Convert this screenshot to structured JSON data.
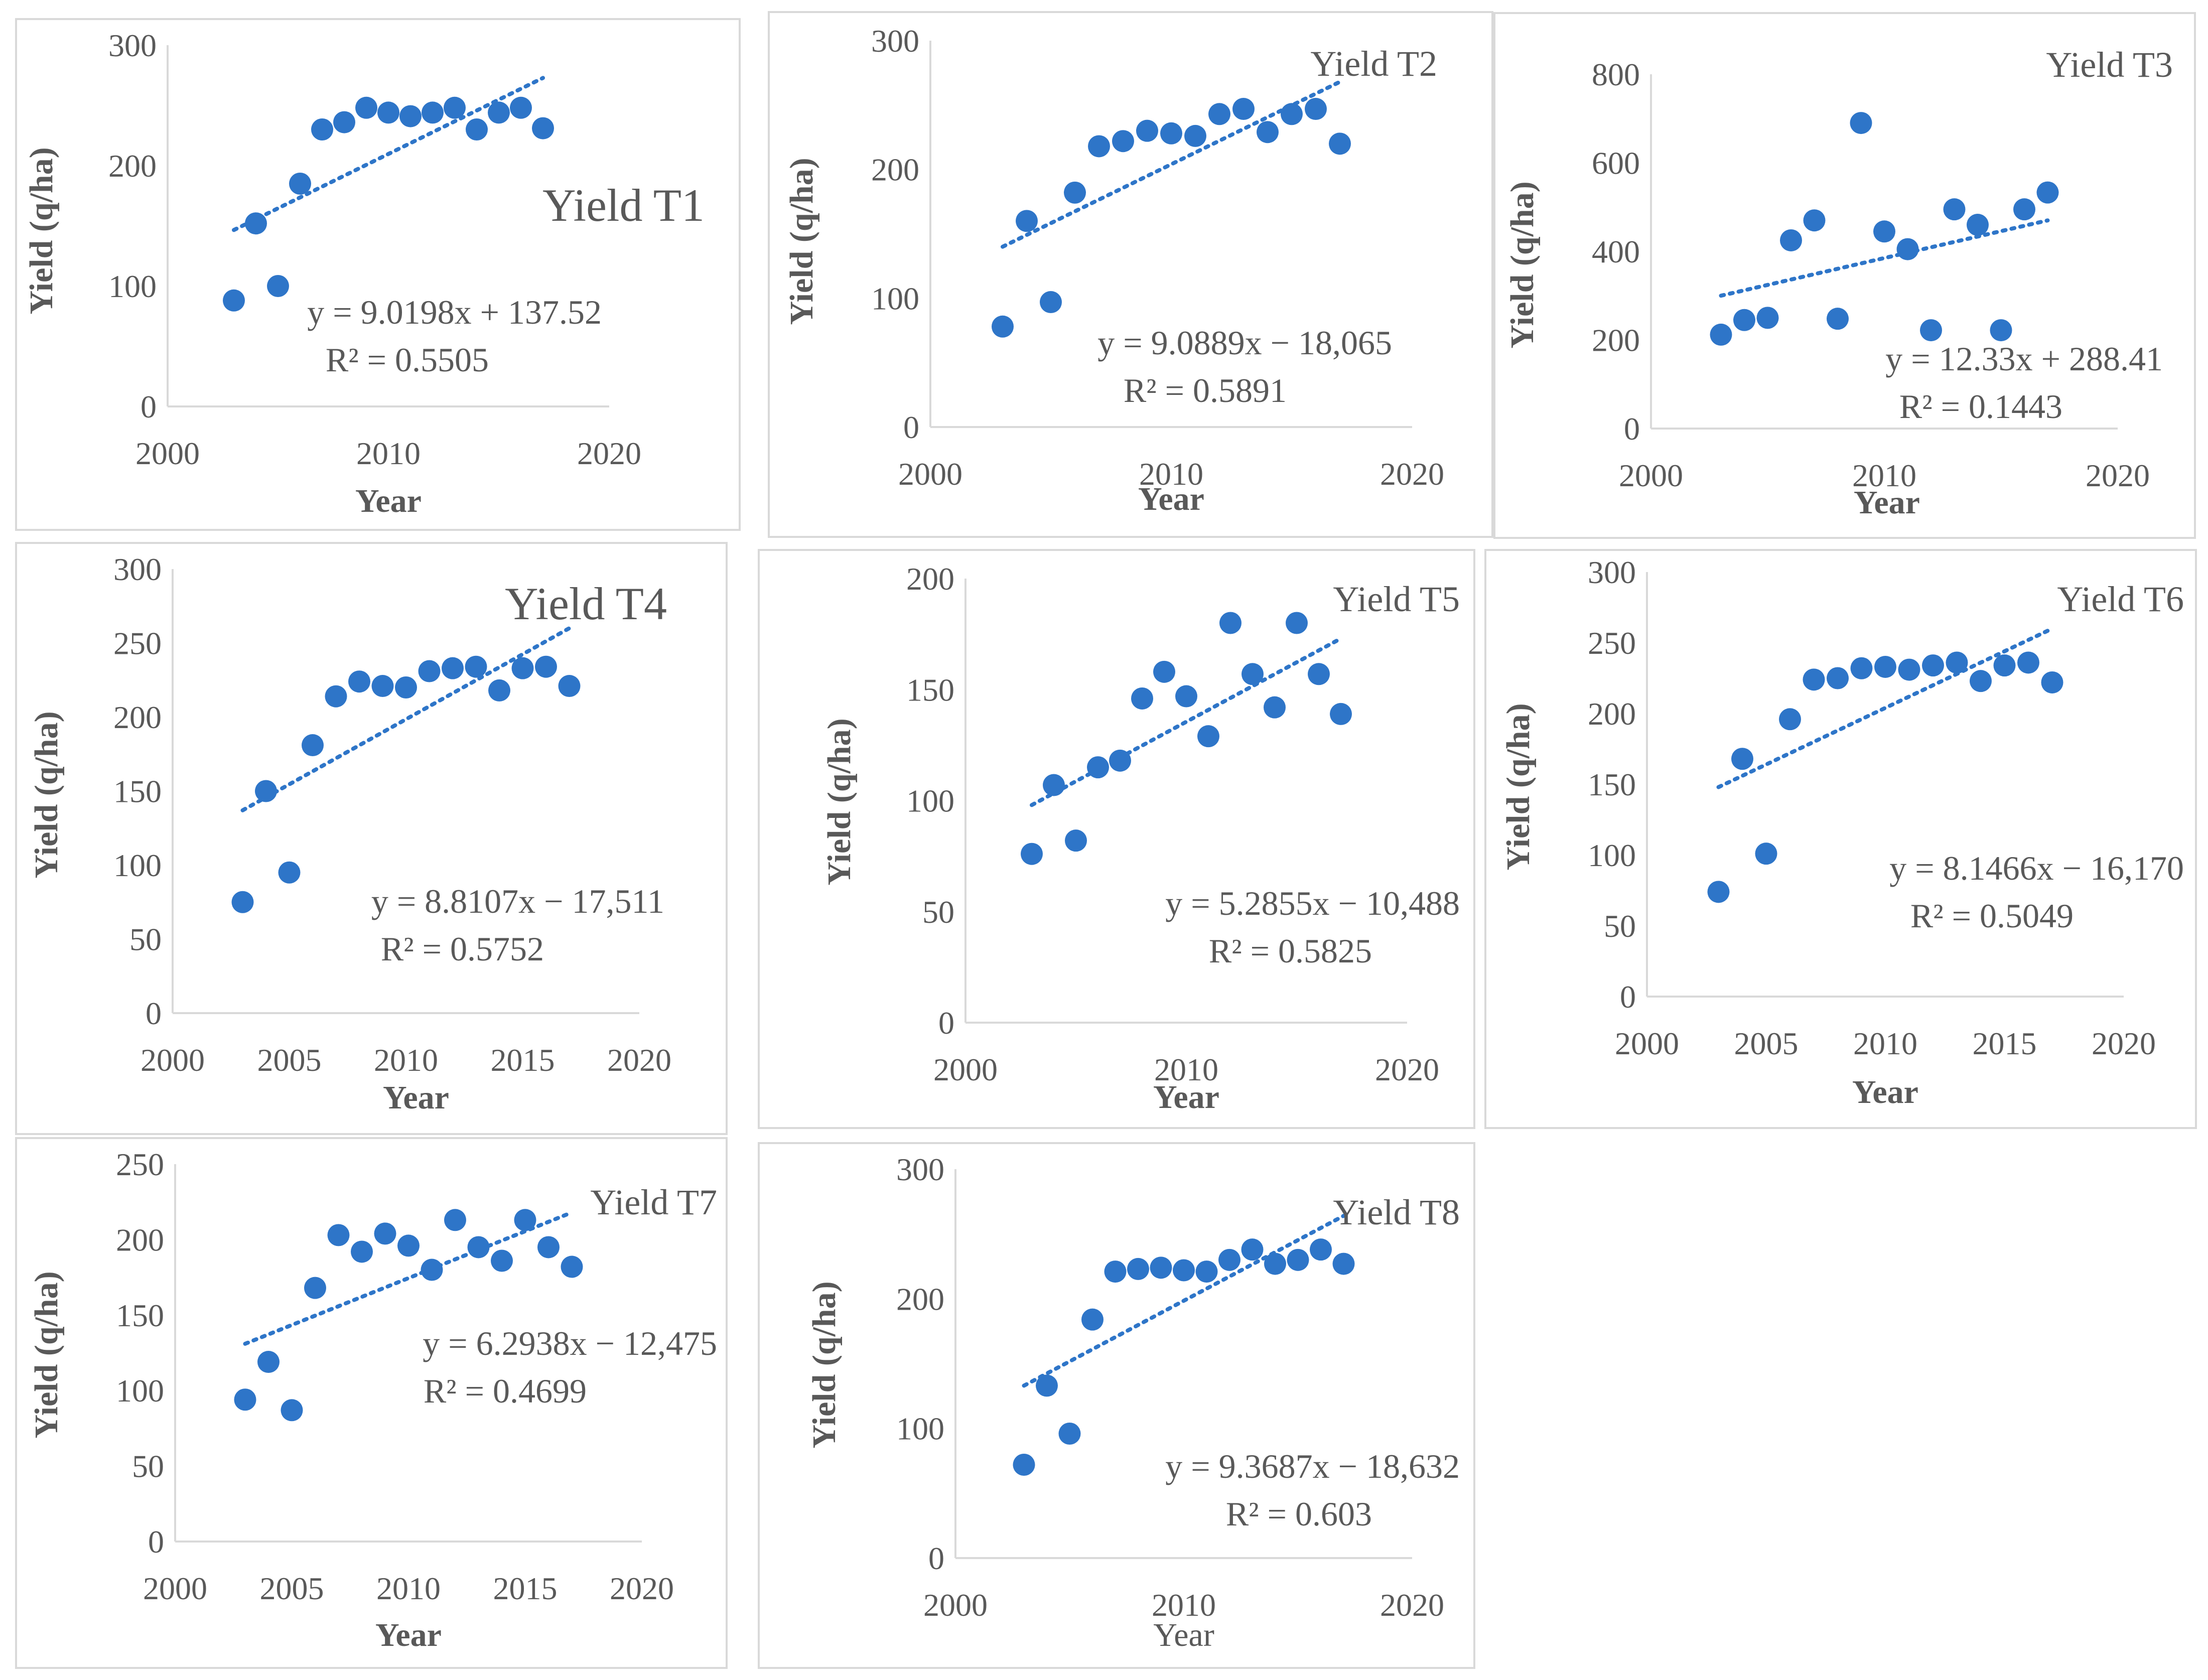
{
  "chart_data": [
    {
      "type": "scatter",
      "title": "Yield T1",
      "xlabel": "Year",
      "ylabel": "Yield (q/ha)",
      "xlim": [
        2000,
        2020
      ],
      "ylim": [
        0,
        300
      ],
      "xticks": [
        "2000",
        "2010",
        "2020"
      ],
      "yticks": [
        "0",
        "100",
        "200",
        "300"
      ],
      "x": [
        2003,
        2004,
        2005,
        2006,
        2007,
        2008,
        2009,
        2010,
        2011,
        2012,
        2013,
        2014,
        2015,
        2016,
        2017
      ],
      "y": [
        88,
        152,
        100,
        185,
        230,
        236,
        248,
        244,
        241,
        244,
        248,
        230,
        244,
        248,
        231
      ],
      "trendline": {
        "x": [
          2003,
          2017
        ],
        "y": [
          146.5,
          272.8
        ]
      },
      "equation": "y = 9.0198x + 137.52",
      "r2": "R² = 0.5505",
      "title_style": "large"
    },
    {
      "type": "scatter",
      "title": "Yield T2",
      "xlabel": "Year",
      "ylabel": "Yield (q/ha)",
      "xlim": [
        2000,
        2020
      ],
      "ylim": [
        0,
        300
      ],
      "xticks": [
        "2000",
        "2010",
        "2020"
      ],
      "yticks": [
        "0",
        "100",
        "200",
        "300"
      ],
      "x": [
        2003,
        2004,
        2005,
        2006,
        2007,
        2008,
        2009,
        2010,
        2011,
        2012,
        2013,
        2014,
        2015,
        2016,
        2017
      ],
      "y": [
        78,
        160,
        97,
        182,
        218,
        222,
        230,
        228,
        226,
        243,
        247,
        229,
        243,
        247,
        220
      ],
      "trendline": {
        "x": [
          2003,
          2017
        ],
        "y": [
          140,
          268
        ]
      },
      "equation": "y = 9.0889x − 18,065",
      "r2": "R² = 0.5891",
      "title_style": "small"
    },
    {
      "type": "scatter",
      "title": "Yield T3",
      "xlabel": "Year",
      "ylabel": "Yield (q/ha)",
      "xlim": [
        2000,
        2020
      ],
      "ylim": [
        0,
        800
      ],
      "xticks": [
        "2000",
        "2010",
        "2020"
      ],
      "yticks": [
        "0",
        "200",
        "400",
        "600",
        "800"
      ],
      "x": [
        2003,
        2004,
        2005,
        2006,
        2007,
        2008,
        2009,
        2010,
        2011,
        2012,
        2013,
        2014,
        2015,
        2016,
        2017
      ],
      "y": [
        212,
        245,
        250,
        425,
        470,
        248,
        690,
        445,
        405,
        222,
        495,
        460,
        222,
        495,
        533
      ],
      "trendline": {
        "x": [
          2003,
          2017
        ],
        "y": [
          300,
          470
        ]
      },
      "equation": "y = 12.33x + 288.41",
      "r2": "R² = 0.1443",
      "title_style": "small"
    },
    {
      "type": "scatter",
      "title": "Yield T4",
      "xlabel": "Year",
      "ylabel": "Yield (q/ha)",
      "xlim": [
        2000,
        2020
      ],
      "ylim": [
        0,
        300
      ],
      "xticks": [
        "2000",
        "2005",
        "2010",
        "2015",
        "2020"
      ],
      "yticks": [
        "0",
        "50",
        "100",
        "150",
        "200",
        "250",
        "300"
      ],
      "x": [
        2003,
        2004,
        2005,
        2006,
        2007,
        2008,
        2009,
        2010,
        2011,
        2012,
        2013,
        2014,
        2015,
        2016,
        2017
      ],
      "y": [
        75,
        150,
        95,
        181,
        214,
        224,
        221,
        220,
        231,
        233,
        234,
        218,
        233,
        234,
        221
      ],
      "trendline": {
        "x": [
          2003,
          2017
        ],
        "y": [
          137,
          260
        ]
      },
      "equation": "y = 8.8107x − 17,511",
      "r2": "R² = 0.5752",
      "title_style": "large"
    },
    {
      "type": "scatter",
      "title": "Yield T5",
      "xlabel": "Year",
      "ylabel": "Yield (q/ha)",
      "xlim": [
        2000,
        2020
      ],
      "ylim": [
        0,
        200
      ],
      "xticks": [
        "2000",
        "2010",
        "2020"
      ],
      "yticks": [
        "0",
        "50",
        "100",
        "150",
        "200"
      ],
      "x": [
        2003,
        2004,
        2005,
        2006,
        2007,
        2008,
        2009,
        2010,
        2011,
        2012,
        2013,
        2014,
        2015,
        2016,
        2017
      ],
      "y": [
        76,
        107,
        82,
        115,
        118,
        146,
        158,
        147,
        129,
        180,
        157,
        142,
        180,
        157,
        139
      ],
      "trendline": {
        "x": [
          2003,
          2017
        ],
        "y": [
          98,
          173
        ]
      },
      "equation": "y = 5.2855x − 10,488",
      "r2": "R² = 0.5825",
      "title_style": "small"
    },
    {
      "type": "scatter",
      "title": "Yield T6",
      "xlabel": "Year",
      "ylabel": "Yield (q/ha)",
      "xlim": [
        2000,
        2020
      ],
      "ylim": [
        0,
        300
      ],
      "xticks": [
        "2000",
        "2005",
        "2010",
        "2015",
        "2020"
      ],
      "yticks": [
        "0",
        "50",
        "100",
        "150",
        "200",
        "250",
        "300"
      ],
      "x": [
        2003,
        2004,
        2005,
        2006,
        2007,
        2008,
        2009,
        2010,
        2011,
        2012,
        2013,
        2014,
        2015,
        2016,
        2017
      ],
      "y": [
        74,
        168,
        101,
        196,
        224,
        225,
        232,
        233,
        231,
        234,
        236,
        223,
        234,
        236,
        222
      ],
      "trendline": {
        "x": [
          2003,
          2017
        ],
        "y": [
          148,
          260
        ]
      },
      "equation": "y = 8.1466x − 16,170",
      "r2": "R² = 0.5049",
      "title_style": "small"
    },
    {
      "type": "scatter",
      "title": "Yield T7",
      "xlabel": "Year",
      "ylabel": "Yield (q/ha)",
      "xlim": [
        2000,
        2020
      ],
      "ylim": [
        0,
        250
      ],
      "xticks": [
        "2000",
        "2005",
        "2010",
        "2015",
        "2020"
      ],
      "yticks": [
        "0",
        "50",
        "100",
        "150",
        "200",
        "250"
      ],
      "x": [
        2003,
        2004,
        2005,
        2006,
        2007,
        2008,
        2009,
        2010,
        2011,
        2012,
        2013,
        2014,
        2015,
        2016,
        2017
      ],
      "y": [
        94,
        119,
        87,
        168,
        203,
        192,
        204,
        196,
        180,
        213,
        195,
        186,
        213,
        195,
        182
      ],
      "trendline": {
        "x": [
          2003,
          2017
        ],
        "y": [
          131,
          218
        ]
      },
      "equation": "y = 6.2938x − 12,475",
      "r2": "R² = 0.4699",
      "title_style": "small"
    },
    {
      "type": "scatter",
      "title": "Yield T8",
      "xlabel": "Year",
      "ylabel": "Yield (q/ha)",
      "xlim": [
        2000,
        2020
      ],
      "ylim": [
        0,
        300
      ],
      "xticks": [
        "2000",
        "2010",
        "2020"
      ],
      "yticks": [
        "0",
        "100",
        "200",
        "300"
      ],
      "x": [
        2003,
        2004,
        2005,
        2006,
        2007,
        2008,
        2009,
        2010,
        2011,
        2012,
        2013,
        2014,
        2015,
        2016,
        2017
      ],
      "y": [
        72,
        133,
        96,
        184,
        221,
        223,
        224,
        222,
        221,
        230,
        238,
        227,
        230,
        238,
        227
      ],
      "trendline": {
        "x": [
          2003,
          2017
        ],
        "y": [
          133,
          264
        ]
      },
      "equation": "y = 9.3687x − 18,632",
      "r2": "R² = 0.603",
      "title_style": "small",
      "xlabel_style": "normal"
    }
  ]
}
